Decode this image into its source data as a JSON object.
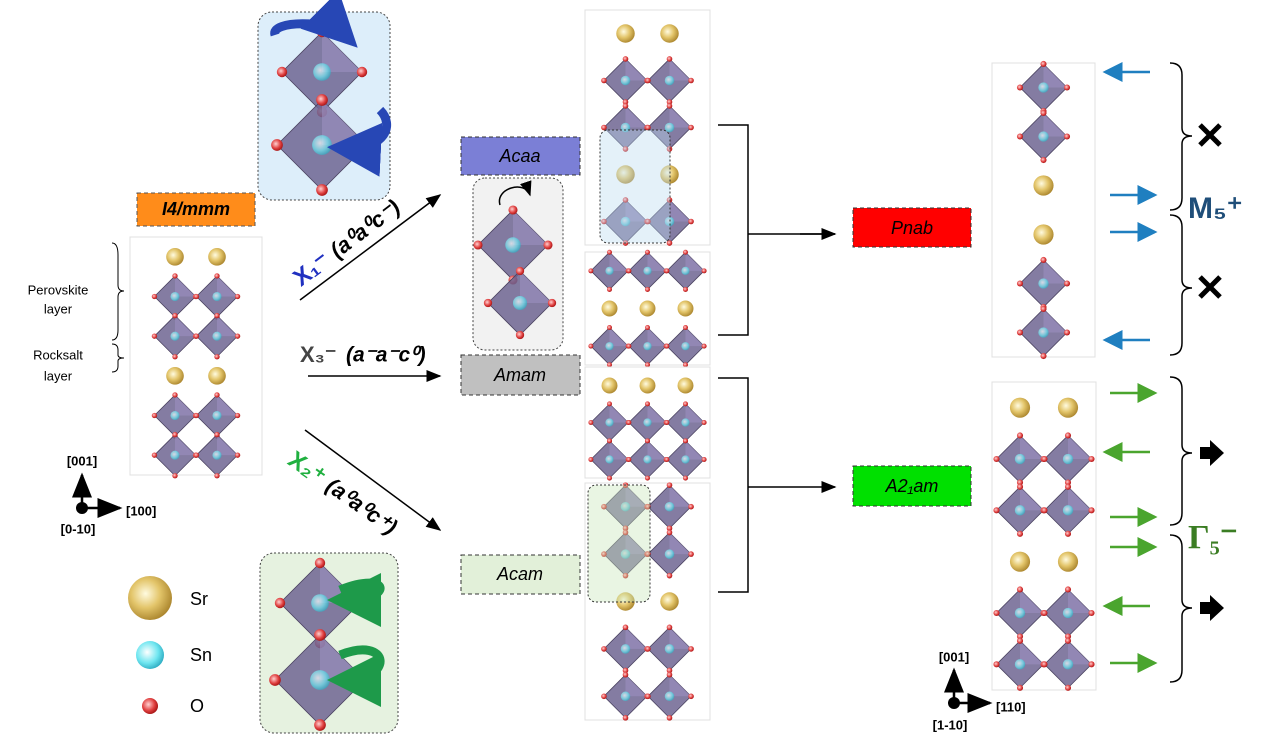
{
  "parent_phase": "I4/mmm",
  "layers": {
    "perovskite": [
      "Perovskite",
      "layer"
    ],
    "rocksalt": [
      "Rocksalt",
      "layer"
    ]
  },
  "axes_left": {
    "up": "[001]",
    "right": "[100]",
    "out": "[0-10]"
  },
  "legend": [
    "Sr",
    "Sn",
    "O"
  ],
  "modes": [
    {
      "symbol": "X₁⁻",
      "notation": "(a⁰a⁰c⁻)"
    },
    {
      "symbol": "X₃⁻",
      "notation": "(a⁻a⁻c⁰)"
    },
    {
      "symbol": "X₂⁺",
      "notation": "(a⁰a⁰c⁺)"
    }
  ],
  "intermediate_phases": [
    "Acaa",
    "Amam",
    "Acam"
  ],
  "final_phases": [
    "Pnab",
    "A2₁am"
  ],
  "irreps": [
    "M₅⁺",
    "Γ₅⁻"
  ],
  "axes_right": {
    "up": "[001]",
    "right": "[110]",
    "out": "[1-10]"
  }
}
